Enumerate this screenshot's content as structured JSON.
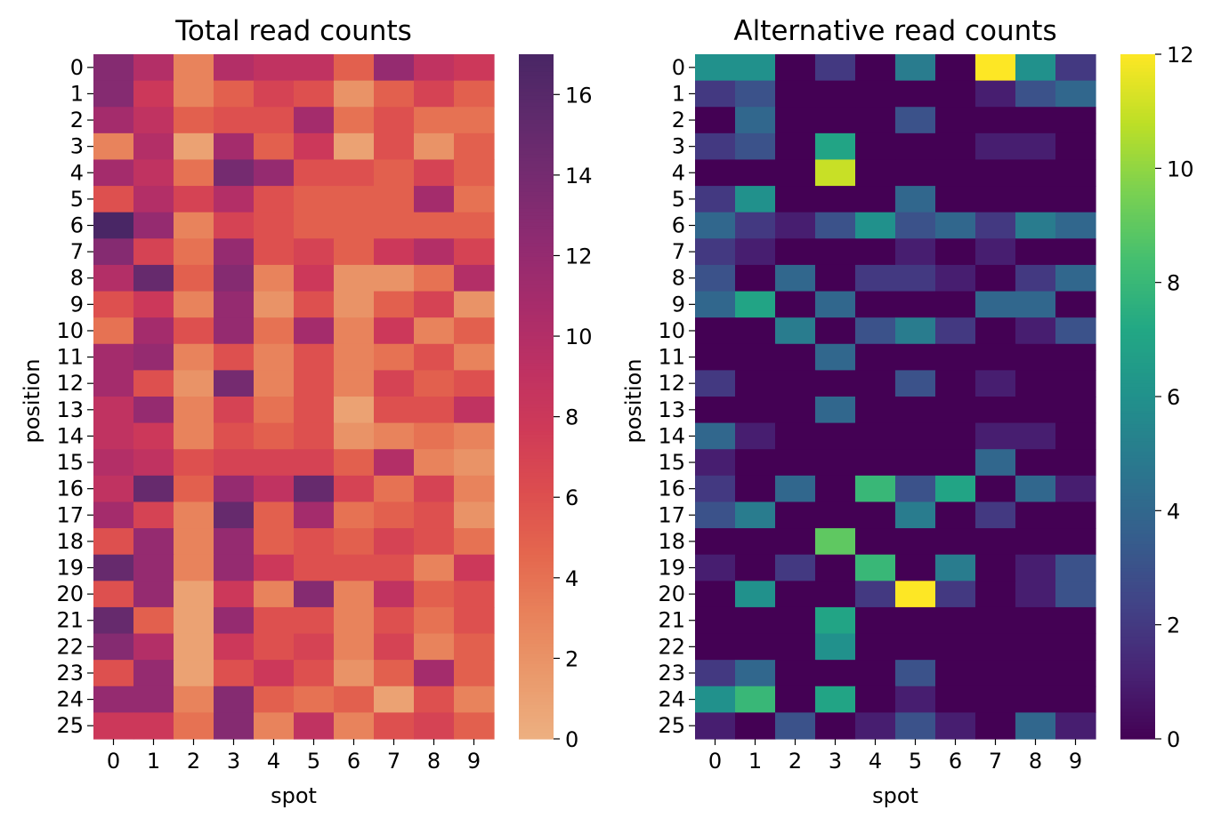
{
  "chart_data": [
    {
      "type": "heatmap",
      "title": "Total read counts",
      "xlabel": "spot",
      "ylabel": "position",
      "x_ticks": [
        "0",
        "1",
        "2",
        "3",
        "4",
        "5",
        "6",
        "7",
        "8",
        "9"
      ],
      "y_ticks": [
        "0",
        "1",
        "2",
        "3",
        "4",
        "5",
        "6",
        "7",
        "8",
        "9",
        "10",
        "11",
        "12",
        "13",
        "14",
        "15",
        "16",
        "17",
        "18",
        "19",
        "20",
        "21",
        "22",
        "23",
        "24",
        "25"
      ],
      "colormap": "flare",
      "vmin": 0,
      "vmax": 17,
      "colorbar_ticks": [
        "0",
        "2",
        "4",
        "6",
        "8",
        "10",
        "12",
        "14",
        "16"
      ],
      "values": [
        [
          13,
          10,
          3,
          10,
          9,
          9,
          5,
          12,
          9,
          8
        ],
        [
          13,
          8,
          3,
          5,
          7,
          6,
          2,
          5,
          7,
          5
        ],
        [
          11,
          9,
          5,
          6,
          6,
          11,
          4,
          6,
          4,
          4
        ],
        [
          3,
          10,
          1,
          11,
          5,
          8,
          1,
          6,
          2,
          5
        ],
        [
          11,
          9,
          4,
          14,
          12,
          6,
          6,
          5,
          7,
          5
        ],
        [
          6,
          10,
          7,
          10,
          6,
          5,
          5,
          5,
          11,
          4
        ],
        [
          17,
          12,
          3,
          7,
          6,
          5,
          5,
          5,
          5,
          5
        ],
        [
          13,
          7,
          4,
          12,
          6,
          7,
          5,
          8,
          10,
          7
        ],
        [
          10,
          15,
          5,
          13,
          3,
          8,
          2,
          2,
          4,
          10
        ],
        [
          6,
          8,
          3,
          12,
          2,
          6,
          2,
          5,
          7,
          2
        ],
        [
          4,
          11,
          6,
          12,
          4,
          11,
          3,
          8,
          3,
          5
        ],
        [
          11,
          12,
          3,
          6,
          3,
          6,
          3,
          4,
          6,
          3
        ],
        [
          11,
          6,
          2,
          14,
          3,
          6,
          3,
          7,
          5,
          6
        ],
        [
          9,
          12,
          3,
          7,
          4,
          6,
          1,
          6,
          6,
          9
        ],
        [
          9,
          8,
          3,
          6,
          5,
          6,
          2,
          3,
          4,
          3
        ],
        [
          10,
          9,
          6,
          7,
          7,
          7,
          5,
          10,
          3,
          2
        ],
        [
          9,
          15,
          5,
          12,
          9,
          15,
          7,
          4,
          7,
          3
        ],
        [
          11,
          7,
          3,
          15,
          5,
          11,
          4,
          5,
          6,
          2
        ],
        [
          6,
          12,
          3,
          12,
          5,
          6,
          5,
          7,
          6,
          4
        ],
        [
          15,
          12,
          3,
          12,
          8,
          6,
          6,
          6,
          3,
          8
        ],
        [
          6,
          12,
          1,
          8,
          3,
          13,
          3,
          9,
          5,
          6
        ],
        [
          15,
          5,
          1,
          12,
          6,
          6,
          3,
          6,
          4,
          6
        ],
        [
          13,
          10,
          1,
          8,
          6,
          7,
          3,
          7,
          3,
          5
        ],
        [
          6,
          12,
          1,
          6,
          8,
          6,
          2,
          5,
          11,
          5
        ],
        [
          12,
          12,
          3,
          13,
          5,
          4,
          5,
          1,
          6,
          3
        ],
        [
          8,
          8,
          4,
          13,
          3,
          9,
          3,
          6,
          7,
          5
        ]
      ]
    },
    {
      "type": "heatmap",
      "title": "Alternative read counts",
      "xlabel": "spot",
      "ylabel": "position",
      "x_ticks": [
        "0",
        "1",
        "2",
        "3",
        "4",
        "5",
        "6",
        "7",
        "8",
        "9"
      ],
      "y_ticks": [
        "0",
        "1",
        "2",
        "3",
        "4",
        "5",
        "6",
        "7",
        "8",
        "9",
        "10",
        "11",
        "12",
        "13",
        "14",
        "15",
        "16",
        "17",
        "18",
        "19",
        "20",
        "21",
        "22",
        "23",
        "24",
        "25"
      ],
      "colormap": "viridis",
      "vmin": 0,
      "vmax": 12,
      "colorbar_ticks": [
        "0",
        "2",
        "4",
        "6",
        "8",
        "10",
        "12"
      ],
      "values": [
        [
          6,
          6,
          0,
          2,
          0,
          5,
          0,
          12,
          6,
          2
        ],
        [
          2,
          3,
          0,
          0,
          0,
          0,
          0,
          1,
          3,
          4
        ],
        [
          0,
          4,
          0,
          0,
          0,
          3,
          0,
          0,
          0,
          0
        ],
        [
          2,
          3,
          0,
          7,
          0,
          0,
          0,
          1,
          1,
          0
        ],
        [
          0,
          0,
          0,
          11,
          0,
          0,
          0,
          0,
          0,
          0
        ],
        [
          2,
          6,
          0,
          0,
          0,
          4,
          0,
          0,
          0,
          0
        ],
        [
          4,
          2,
          1,
          3,
          6,
          3,
          4,
          2,
          5,
          4
        ],
        [
          2,
          1,
          0,
          0,
          0,
          1,
          0,
          1,
          0,
          0
        ],
        [
          3,
          0,
          4,
          0,
          2,
          2,
          1,
          0,
          2,
          4
        ],
        [
          4,
          7,
          0,
          4,
          0,
          0,
          0,
          4,
          4,
          0
        ],
        [
          0,
          0,
          5,
          0,
          3,
          5,
          2,
          0,
          1,
          3
        ],
        [
          0,
          0,
          0,
          4,
          0,
          0,
          0,
          0,
          0,
          0
        ],
        [
          2,
          0,
          0,
          0,
          0,
          3,
          0,
          1,
          0,
          0
        ],
        [
          0,
          0,
          0,
          4,
          0,
          0,
          0,
          0,
          0,
          0
        ],
        [
          4,
          1,
          0,
          0,
          0,
          0,
          0,
          1,
          1,
          0
        ],
        [
          1,
          0,
          0,
          0,
          0,
          0,
          0,
          4,
          0,
          0
        ],
        [
          2,
          0,
          4,
          0,
          8,
          3,
          7,
          0,
          4,
          1
        ],
        [
          3,
          5,
          0,
          0,
          0,
          5,
          0,
          2,
          0,
          0
        ],
        [
          0,
          0,
          0,
          9,
          0,
          0,
          0,
          0,
          0,
          0
        ],
        [
          1,
          0,
          2,
          0,
          8,
          0,
          5,
          0,
          1,
          3
        ],
        [
          0,
          6,
          0,
          0,
          2,
          12,
          2,
          0,
          1,
          3
        ],
        [
          0,
          0,
          0,
          7,
          0,
          0,
          0,
          0,
          0,
          0
        ],
        [
          0,
          0,
          0,
          6,
          0,
          0,
          0,
          0,
          0,
          0
        ],
        [
          2,
          4,
          0,
          0,
          0,
          3,
          0,
          0,
          0,
          0
        ],
        [
          6,
          8,
          0,
          7,
          0,
          1,
          0,
          0,
          0,
          0
        ],
        [
          1,
          0,
          3,
          0,
          1,
          3,
          1,
          0,
          4,
          1
        ]
      ]
    }
  ]
}
